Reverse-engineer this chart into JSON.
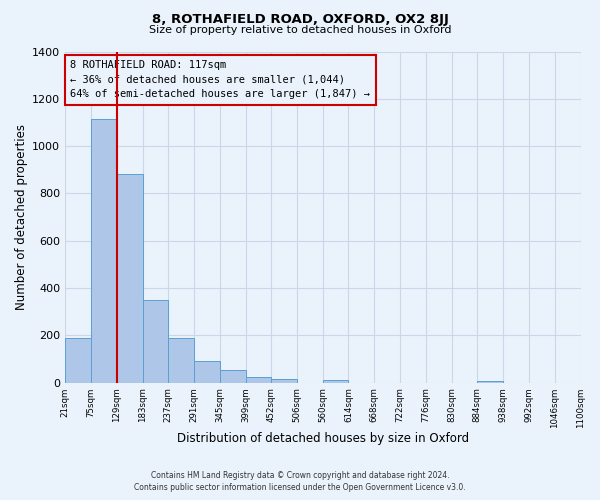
{
  "title": "8, ROTHAFIELD ROAD, OXFORD, OX2 8JJ",
  "subtitle": "Size of property relative to detached houses in Oxford",
  "xlabel": "Distribution of detached houses by size in Oxford",
  "ylabel": "Number of detached properties",
  "bar_left_edges": [
    21,
    75,
    129,
    183,
    237,
    291,
    345,
    399,
    452,
    506,
    560,
    614,
    668,
    722,
    776,
    830,
    884,
    938,
    992,
    1046
  ],
  "bar_heights": [
    190,
    1115,
    880,
    350,
    190,
    93,
    53,
    22,
    17,
    0,
    12,
    0,
    0,
    0,
    0,
    0,
    8,
    0,
    0,
    0
  ],
  "bin_width": 54,
  "tick_labels": [
    "21sqm",
    "75sqm",
    "129sqm",
    "183sqm",
    "237sqm",
    "291sqm",
    "345sqm",
    "399sqm",
    "452sqm",
    "506sqm",
    "560sqm",
    "614sqm",
    "668sqm",
    "722sqm",
    "776sqm",
    "830sqm",
    "884sqm",
    "938sqm",
    "992sqm",
    "1046sqm",
    "1100sqm"
  ],
  "bar_color": "#aec6e8",
  "bar_edge_color": "#5a9fd4",
  "vline_x": 129,
  "vline_color": "#cc0000",
  "annotation_title": "8 ROTHAFIELD ROAD: 117sqm",
  "annotation_line1": "← 36% of detached houses are smaller (1,044)",
  "annotation_line2": "64% of semi-detached houses are larger (1,847) →",
  "annotation_box_color": "#cc0000",
  "ylim": [
    0,
    1400
  ],
  "yticks": [
    0,
    200,
    400,
    600,
    800,
    1000,
    1200,
    1400
  ],
  "grid_color": "#c8d8e8",
  "background_color": "#eaf2fb",
  "footer_line1": "Contains HM Land Registry data © Crown copyright and database right 2024.",
  "footer_line2": "Contains public sector information licensed under the Open Government Licence v3.0."
}
